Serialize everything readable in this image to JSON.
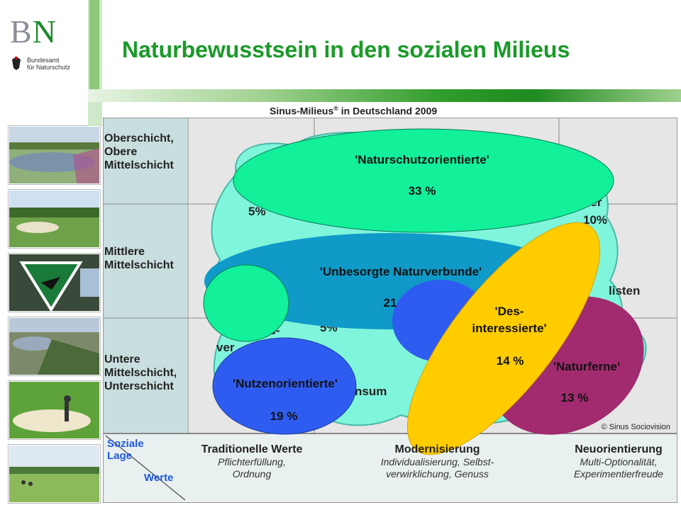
{
  "logo": {
    "bn_b": "B",
    "bn_n": "N",
    "sub_line1": "Bundesamt",
    "sub_line2": "für Naturschutz"
  },
  "header": {
    "title": "Naturbewusstsein in den sozialen Milieus"
  },
  "chart": {
    "subtitle_main": "Sinus-Milieus",
    "subtitle_reg": "®",
    "subtitle_rest": " in Deutschland 2009",
    "rows": [
      {
        "lines": [
          "Oberschicht,",
          "Obere",
          "Mittelschicht"
        ]
      },
      {
        "lines": [
          "Mittlere",
          "Mittelschicht"
        ]
      },
      {
        "lines": [
          "Untere",
          "Mittelschicht,",
          "Unterschicht"
        ]
      }
    ],
    "corner": {
      "top": "Soziale",
      "top2": "Lage",
      "bottom": "Werte"
    },
    "columns": [
      {
        "head": "Traditionelle Werte",
        "sub1": "Pflichterfüllung,",
        "sub2": "Ordnung"
      },
      {
        "head": "Modernisierung",
        "sub1": "Individualisierung, Selbst-",
        "sub2": "verwirklichung, Genuss"
      },
      {
        "head": "Neuorientierung",
        "sub1": "Multi-Optionalität,",
        "sub2": "Experimentierfreude"
      }
    ],
    "bg_fragments": {
      "f1": "5%",
      "f2": "ner",
      "f3": "10%",
      "f4": "listen",
      "f5": "ns-",
      "f6": "ver",
      "f7": "5%",
      "f8": "nsum"
    },
    "copyright": "© Sinus Sociovision",
    "colors": {
      "teal": "#7ff5dc",
      "teal_stroke": "#4ab8a6",
      "green": "#12f09a",
      "blue_band": "#0f9ac8",
      "royal": "#2f5cf0",
      "yellow": "#ffcc00",
      "magenta": "#a12b6e",
      "grid_bg": "#e6e6e6",
      "row_bg": "#c9dede"
    },
    "groups": [
      {
        "name": "'Naturschutzorientierte'",
        "pct": "33 %"
      },
      {
        "name": "'Unbesorgte Naturverbunde'",
        "pct": "21"
      },
      {
        "name": "'Nutzenorientierte'",
        "pct": "19 %"
      },
      {
        "name_line1": "'Des-",
        "name_line2": "interessierte'",
        "pct": "14 %"
      },
      {
        "name": "'Naturferne'",
        "pct": "13 %"
      }
    ]
  }
}
